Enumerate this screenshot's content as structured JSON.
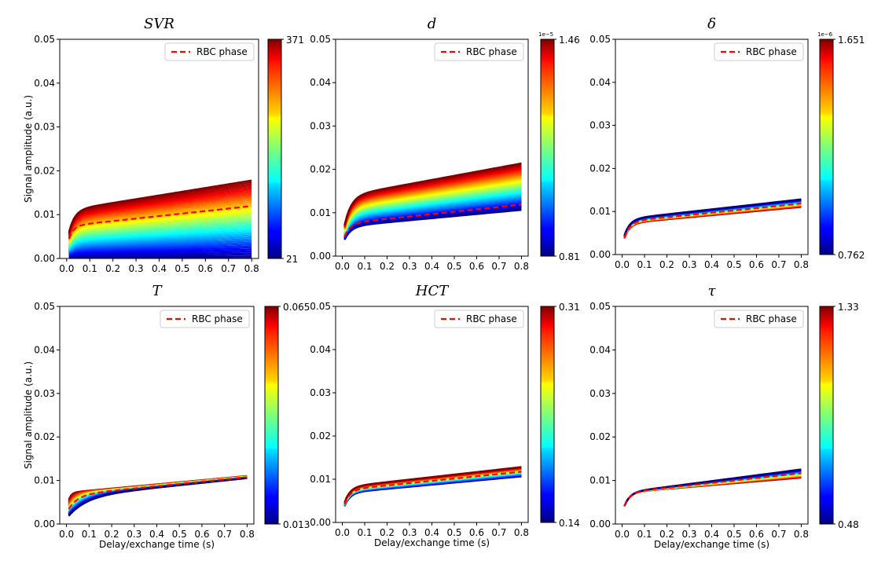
{
  "chart_data": [
    {
      "type": "line",
      "title": "SVR",
      "xlabel": "",
      "ylabel": "Signal amplitude (a.u.)",
      "xlim": [
        -0.03,
        0.83
      ],
      "ylim": [
        0.0,
        0.05
      ],
      "xticks": [
        "0.0",
        "0.1",
        "0.2",
        "0.3",
        "0.4",
        "0.5",
        "0.6",
        "0.7",
        "0.8"
      ],
      "yticks": [
        "0.00",
        "0.01",
        "0.02",
        "0.03",
        "0.04",
        "0.05"
      ],
      "legend": {
        "label": "RBC phase",
        "color": "#ff0000",
        "style": "dashed",
        "placement": "top-right"
      },
      "colorbar": {
        "min": "21",
        "max": "371",
        "exponent": "",
        "reversed": false
      },
      "family": {
        "y0": [
          0.0,
          0.0035
        ],
        "plateau": [
          0.0,
          0.011
        ],
        "slope": [
          0.0,
          0.0085
        ],
        "tau": 0.025,
        "n": 45
      },
      "rbc": {
        "y0": 0.0025,
        "plateau": 0.0074,
        "slope": 0.0057,
        "tau": 0.02
      }
    },
    {
      "type": "line",
      "title": "d",
      "xlabel": "",
      "ylabel": "",
      "xlim": [
        -0.03,
        0.83
      ],
      "ylim": [
        0.0,
        0.05
      ],
      "xticks": [
        "0.0",
        "0.1",
        "0.2",
        "0.3",
        "0.4",
        "0.5",
        "0.6",
        "0.7",
        "0.8"
      ],
      "yticks": [
        "0.00",
        "0.01",
        "0.02",
        "0.03",
        "0.04",
        "0.05"
      ],
      "legend": {
        "label": "RBC phase",
        "color": "#ff0000",
        "style": "dashed",
        "placement": "top-right"
      },
      "colorbar": {
        "min": "0.81",
        "max": "1.46",
        "exponent": "1e−5",
        "reversed": false
      },
      "family": {
        "y0": [
          0.0025,
          0.0045
        ],
        "plateau": [
          0.0068,
          0.0138
        ],
        "slope": [
          0.0048,
          0.0095
        ],
        "tau": 0.03,
        "n": 45
      },
      "rbc": {
        "y0": 0.003,
        "plateau": 0.0075,
        "slope": 0.0055,
        "tau": 0.025
      }
    },
    {
      "type": "line",
      "title": "δ",
      "xlabel": "",
      "ylabel": "",
      "xlim": [
        -0.03,
        0.83
      ],
      "ylim": [
        0.0,
        0.05
      ],
      "xticks": [
        "0.0",
        "0.1",
        "0.2",
        "0.3",
        "0.4",
        "0.5",
        "0.6",
        "0.7",
        "0.8"
      ],
      "yticks": [
        "0.00",
        "0.01",
        "0.02",
        "0.03",
        "0.04",
        "0.05"
      ],
      "legend": {
        "label": "RBC phase",
        "color": "#ff0000",
        "style": "dashed",
        "placement": "top-right"
      },
      "colorbar": {
        "min": "0.762",
        "max": "1.651",
        "exponent": "1e−6",
        "reversed": true
      },
      "family": {
        "y0": [
          0.002,
          0.0025
        ],
        "plateau": [
          0.0072,
          0.0082
        ],
        "slope": [
          0.0048,
          0.0058
        ],
        "tau": 0.025,
        "n": 30
      },
      "rbc": {
        "y0": 0.002,
        "plateau": 0.0076,
        "slope": 0.0053,
        "tau": 0.025
      }
    },
    {
      "type": "line",
      "title": "T",
      "xlabel": "Delay/exchange time (s)",
      "ylabel": "Signal amplitude (a.u.)",
      "xlim": [
        -0.03,
        0.83
      ],
      "ylim": [
        0.0,
        0.05
      ],
      "xticks": [
        "0.0",
        "0.1",
        "0.2",
        "0.3",
        "0.4",
        "0.5",
        "0.6",
        "0.7",
        "0.8"
      ],
      "yticks": [
        "0.00",
        "0.01",
        "0.02",
        "0.03",
        "0.04",
        "0.05"
      ],
      "legend": {
        "label": "RBC phase",
        "color": "#ff0000",
        "style": "dashed",
        "placement": "top-right"
      },
      "colorbar": {
        "min": "0.013",
        "max": "0.065",
        "exponent": "",
        "reversed": true
      },
      "family": {
        "y0": [
          0.0035,
          0.0012
        ],
        "plateau": [
          0.0072,
          0.0062
        ],
        "slope": [
          0.0048,
          0.0054
        ],
        "tau": [
          0.012,
          0.08
        ],
        "n": 30
      },
      "rbc": {
        "y0": 0.0025,
        "plateau": 0.0066,
        "slope": 0.0052,
        "tau": 0.04
      }
    },
    {
      "type": "line",
      "title": "HCT",
      "xlabel": "Delay/exchange time (s)",
      "ylabel": "",
      "xlim": [
        -0.03,
        0.83
      ],
      "ylim": [
        0.0,
        0.05
      ],
      "xticks": [
        "0.0",
        "0.1",
        "0.2",
        "0.3",
        "0.4",
        "0.5",
        "0.6",
        "0.7",
        "0.8"
      ],
      "yticks": [
        "0.00",
        "0.01",
        "0.02",
        "0.03",
        "0.04",
        "0.05"
      ],
      "legend": {
        "label": "RBC phase",
        "color": "#ff0000",
        "style": "dashed",
        "placement": "top-right"
      },
      "colorbar": {
        "min": "0.14",
        "max": "0.31",
        "exponent": "",
        "reversed": false
      },
      "family": {
        "y0": [
          0.0022,
          0.0028
        ],
        "plateau": [
          0.0068,
          0.0082
        ],
        "slope": [
          0.0048,
          0.0058
        ],
        "tau": 0.025,
        "n": 30
      },
      "rbc": {
        "y0": 0.0025,
        "plateau": 0.0075,
        "slope": 0.0053,
        "tau": 0.025
      }
    },
    {
      "type": "line",
      "title": "τ",
      "xlabel": "Delay/exchange time (s)",
      "ylabel": "",
      "xlim": [
        -0.03,
        0.83
      ],
      "ylim": [
        0.0,
        0.05
      ],
      "xticks": [
        "0.0",
        "0.1",
        "0.2",
        "0.3",
        "0.4",
        "0.5",
        "0.6",
        "0.7",
        "0.8"
      ],
      "yticks": [
        "0.00",
        "0.01",
        "0.02",
        "0.03",
        "0.04",
        "0.05"
      ],
      "legend": {
        "label": "RBC phase",
        "color": "#ff0000",
        "style": "dashed",
        "placement": "top-right"
      },
      "colorbar": {
        "min": "0.48",
        "max": "1.33",
        "exponent": "",
        "reversed": true
      },
      "family": {
        "y0": [
          0.0025,
          0.0025
        ],
        "plateau": [
          0.0072,
          0.0072
        ],
        "slope": [
          0.0043,
          0.0067
        ],
        "tau": 0.025,
        "n": 30
      },
      "rbc": {
        "y0": 0.0025,
        "plateau": 0.0072,
        "slope": 0.0056,
        "tau": 0.025
      }
    }
  ]
}
